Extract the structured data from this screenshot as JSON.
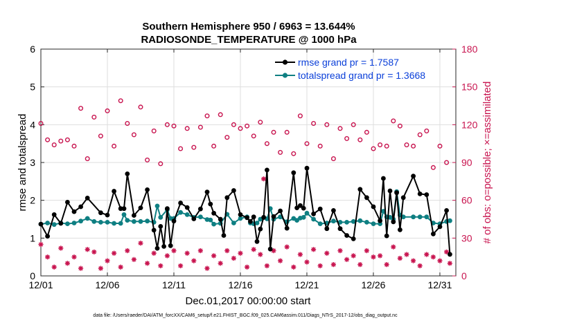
{
  "chart_data": {
    "type": "line",
    "title": [
      "Southern Hemisphere 950 / 6963 = 13.644%",
      "RADIOSONDE_TEMPERATURE @ 1000 hPa"
    ],
    "xlabel": "Dec.01,2017 00:00:00 start",
    "ylabel": "rmse and totalspread",
    "ylabel_right": "# of obs: o=possible; ×=assimilated",
    "xlim": [
      1,
      32.2
    ],
    "ylim": [
      0,
      6
    ],
    "ylim_right": [
      0,
      180
    ],
    "x_ticks": [
      1,
      6,
      11,
      16,
      21,
      26,
      31
    ],
    "x_ticklabels": [
      "12/01",
      "12/06",
      "12/11",
      "12/16",
      "12/21",
      "12/26",
      "12/31"
    ],
    "y_ticks": [
      0,
      1,
      2,
      3,
      4,
      5,
      6
    ],
    "y_ticks_right": [
      0,
      30,
      60,
      90,
      120,
      150,
      180
    ],
    "footnote": "data file: /Users/raeder/DAI/ATM_forcXX/CAM6_setup/f.e21.FHIST_BGC.f09_025.CAM6assim.011/Diags_NTrS_2017-12/obs_diag_output.nc",
    "colors": {
      "rmse": "#000000",
      "spread": "#0e7f82",
      "obs": "#c8144f",
      "legend_text": "#0a3fd9"
    },
    "series": [
      {
        "name": "rmse grand pr = 1.7587",
        "key": "rmse",
        "marker": "dot",
        "points": [
          [
            1.0,
            1.37
          ],
          [
            1.5,
            1.05
          ],
          [
            2.0,
            1.62
          ],
          [
            2.5,
            1.39
          ],
          [
            3.0,
            1.95
          ],
          [
            3.5,
            1.7
          ],
          [
            4.0,
            1.83
          ],
          [
            4.5,
            2.06
          ],
          [
            5.5,
            1.67
          ],
          [
            6.0,
            1.61
          ],
          [
            6.5,
            2.24
          ],
          [
            7.0,
            1.78
          ],
          [
            7.25,
            1.78
          ],
          [
            7.5,
            2.7
          ],
          [
            8.0,
            1.6
          ],
          [
            8.5,
            1.8
          ],
          [
            9.0,
            2.28
          ],
          [
            9.5,
            1.21
          ],
          [
            9.75,
            0.73
          ],
          [
            10.0,
            1.31
          ],
          [
            10.25,
            0.78
          ],
          [
            10.5,
            1.78
          ],
          [
            10.75,
            0.8
          ],
          [
            11.0,
            1.45
          ],
          [
            11.5,
            1.93
          ],
          [
            12.0,
            1.81
          ],
          [
            12.5,
            1.51
          ],
          [
            13.0,
            1.77
          ],
          [
            13.5,
            2.22
          ],
          [
            13.75,
            1.9
          ],
          [
            14.0,
            1.66
          ],
          [
            14.5,
            1.5
          ],
          [
            14.75,
            1.07
          ],
          [
            15.0,
            2.07
          ],
          [
            15.5,
            2.26
          ],
          [
            16.0,
            1.62
          ],
          [
            16.5,
            1.54
          ],
          [
            16.75,
            1.44
          ],
          [
            17.0,
            1.56
          ],
          [
            17.25,
            0.91
          ],
          [
            17.5,
            1.24
          ],
          [
            17.75,
            1.55
          ],
          [
            18.0,
            2.8
          ],
          [
            18.25,
            0.71
          ],
          [
            18.5,
            1.57
          ],
          [
            19.0,
            1.72
          ],
          [
            19.5,
            1.26
          ],
          [
            20.0,
            2.73
          ],
          [
            20.25,
            1.8
          ],
          [
            20.5,
            1.86
          ],
          [
            20.75,
            1.79
          ],
          [
            21.0,
            2.85
          ],
          [
            21.5,
            1.64
          ],
          [
            22.0,
            1.77
          ],
          [
            22.5,
            1.25
          ],
          [
            23.0,
            1.73
          ],
          [
            23.5,
            1.25
          ],
          [
            24.0,
            1.07
          ],
          [
            24.5,
            0.98
          ],
          [
            25.0,
            2.29
          ],
          [
            25.5,
            2.07
          ],
          [
            26.0,
            1.83
          ],
          [
            26.5,
            1.46
          ],
          [
            26.75,
            2.58
          ],
          [
            27.0,
            1.06
          ],
          [
            27.25,
            2.25
          ],
          [
            27.5,
            1.43
          ],
          [
            27.75,
            2.2
          ],
          [
            28.0,
            1.22
          ],
          [
            28.25,
            2.07
          ],
          [
            29.0,
            2.64
          ],
          [
            29.5,
            2.17
          ],
          [
            30.0,
            2.15
          ],
          [
            30.5,
            1.11
          ],
          [
            31.0,
            1.3
          ],
          [
            31.5,
            1.73
          ],
          [
            31.75,
            0.57
          ]
        ]
      },
      {
        "name": "totalspread grand pr = 1.3668",
        "key": "spread",
        "marker": "dot",
        "points": [
          [
            1.0,
            1.37
          ],
          [
            1.5,
            1.4
          ],
          [
            2.0,
            1.36
          ],
          [
            2.5,
            1.4
          ],
          [
            3.0,
            1.38
          ],
          [
            3.5,
            1.4
          ],
          [
            4.0,
            1.45
          ],
          [
            4.5,
            1.52
          ],
          [
            5.0,
            1.44
          ],
          [
            5.5,
            1.42
          ],
          [
            6.0,
            1.42
          ],
          [
            6.5,
            1.39
          ],
          [
            7.0,
            1.39
          ],
          [
            7.25,
            1.62
          ],
          [
            7.5,
            1.47
          ],
          [
            8.0,
            1.44
          ],
          [
            8.5,
            1.44
          ],
          [
            9.0,
            1.45
          ],
          [
            9.5,
            1.42
          ],
          [
            9.75,
            1.85
          ],
          [
            10.0,
            1.55
          ],
          [
            10.5,
            1.75
          ],
          [
            10.75,
            1.52
          ],
          [
            11.0,
            1.52
          ],
          [
            11.5,
            1.68
          ],
          [
            12.0,
            1.62
          ],
          [
            12.5,
            1.55
          ],
          [
            13.0,
            1.56
          ],
          [
            13.5,
            1.49
          ],
          [
            13.75,
            1.48
          ],
          [
            14.0,
            1.37
          ],
          [
            14.5,
            1.39
          ],
          [
            15.0,
            1.63
          ],
          [
            15.5,
            1.4
          ],
          [
            16.0,
            1.52
          ],
          [
            16.5,
            1.56
          ],
          [
            16.75,
            1.4
          ],
          [
            17.0,
            1.38
          ],
          [
            17.25,
            1.4
          ],
          [
            17.5,
            1.5
          ],
          [
            18.0,
            1.51
          ],
          [
            18.25,
            1.78
          ],
          [
            18.5,
            1.5
          ],
          [
            19.0,
            1.56
          ],
          [
            19.5,
            1.43
          ],
          [
            20.0,
            1.52
          ],
          [
            20.25,
            1.47
          ],
          [
            20.5,
            1.53
          ],
          [
            20.75,
            1.55
          ],
          [
            21.0,
            1.66
          ],
          [
            21.5,
            1.5
          ],
          [
            22.0,
            1.38
          ],
          [
            22.5,
            1.4
          ],
          [
            23.0,
            1.45
          ],
          [
            23.5,
            1.42
          ],
          [
            24.0,
            1.42
          ],
          [
            24.5,
            1.44
          ],
          [
            25.0,
            1.46
          ],
          [
            25.5,
            1.42
          ],
          [
            26.0,
            1.38
          ],
          [
            26.5,
            1.38
          ],
          [
            26.75,
            1.71
          ],
          [
            27.0,
            1.56
          ],
          [
            27.25,
            1.55
          ],
          [
            27.5,
            1.5
          ],
          [
            27.75,
            2.23
          ],
          [
            28.0,
            1.61
          ],
          [
            28.25,
            1.56
          ],
          [
            29.0,
            1.56
          ],
          [
            29.5,
            1.56
          ],
          [
            30.0,
            1.56
          ],
          [
            30.5,
            1.4
          ],
          [
            31.0,
            1.38
          ],
          [
            31.5,
            1.44
          ],
          [
            31.75,
            1.46
          ]
        ]
      },
      {
        "name": "obs possible",
        "key": "possible",
        "marker": "circle",
        "axis": "right",
        "points": [
          [
            1.0,
            121
          ],
          [
            1.5,
            108
          ],
          [
            2.0,
            104
          ],
          [
            2.5,
            107
          ],
          [
            3.0,
            108
          ],
          [
            3.5,
            103
          ],
          [
            4.0,
            133
          ],
          [
            4.5,
            93
          ],
          [
            5.0,
            126
          ],
          [
            5.5,
            111
          ],
          [
            6.0,
            131
          ],
          [
            6.5,
            103
          ],
          [
            7.0,
            139
          ],
          [
            7.5,
            121
          ],
          [
            8.0,
            112
          ],
          [
            8.5,
            134
          ],
          [
            9.0,
            92
          ],
          [
            9.5,
            115
          ],
          [
            10.0,
            89
          ],
          [
            10.5,
            120
          ],
          [
            11.0,
            119
          ],
          [
            11.5,
            101
          ],
          [
            12.0,
            117
          ],
          [
            12.5,
            102
          ],
          [
            13.0,
            118
          ],
          [
            13.5,
            127
          ],
          [
            14.0,
            103
          ],
          [
            14.5,
            128
          ],
          [
            15.0,
            110
          ],
          [
            15.5,
            120
          ],
          [
            16.0,
            117
          ],
          [
            16.5,
            119
          ],
          [
            17.0,
            111
          ],
          [
            17.5,
            122
          ],
          [
            18.0,
            105
          ],
          [
            18.5,
            114
          ],
          [
            19.0,
            98
          ],
          [
            19.5,
            114
          ],
          [
            20.0,
            97
          ],
          [
            20.5,
            127
          ],
          [
            21.0,
            105
          ],
          [
            21.5,
            121
          ],
          [
            22.0,
            103
          ],
          [
            22.5,
            120
          ],
          [
            23.0,
            93
          ],
          [
            23.5,
            117
          ],
          [
            24.0,
            109
          ],
          [
            24.5,
            120
          ],
          [
            25.0,
            108
          ],
          [
            25.5,
            114
          ],
          [
            26.0,
            101
          ],
          [
            26.5,
            104
          ],
          [
            27.0,
            103
          ],
          [
            27.5,
            123
          ],
          [
            28.0,
            119
          ],
          [
            28.5,
            104
          ],
          [
            29.0,
            103
          ],
          [
            29.5,
            112
          ],
          [
            30.0,
            115
          ],
          [
            30.5,
            86
          ],
          [
            31.0,
            103
          ],
          [
            31.5,
            90
          ]
        ]
      },
      {
        "name": "obs assimilated",
        "key": "assimilated",
        "marker": "asterisk",
        "axis": "right",
        "points": [
          [
            1.0,
            25
          ],
          [
            1.5,
            15
          ],
          [
            2.0,
            7
          ],
          [
            2.5,
            22
          ],
          [
            3.0,
            10
          ],
          [
            3.5,
            15
          ],
          [
            4.0,
            6
          ],
          [
            4.5,
            21
          ],
          [
            5.0,
            19
          ],
          [
            5.5,
            6
          ],
          [
            6.0,
            12
          ],
          [
            6.5,
            18
          ],
          [
            7.0,
            7
          ],
          [
            7.5,
            20
          ],
          [
            8.0,
            13
          ],
          [
            8.5,
            26
          ],
          [
            9.0,
            10
          ],
          [
            9.5,
            18
          ],
          [
            10.0,
            8
          ],
          [
            10.5,
            16
          ],
          [
            11.0,
            20
          ],
          [
            11.5,
            8
          ],
          [
            12.0,
            18
          ],
          [
            12.5,
            12
          ],
          [
            13.0,
            20
          ],
          [
            13.5,
            6
          ],
          [
            14.0,
            16
          ],
          [
            14.5,
            10
          ],
          [
            15.0,
            20
          ],
          [
            15.5,
            14
          ],
          [
            16.0,
            18
          ],
          [
            16.5,
            7
          ],
          [
            17.0,
            21
          ],
          [
            17.5,
            17
          ],
          [
            17.75,
            77
          ],
          [
            18.0,
            8
          ],
          [
            18.5,
            20
          ],
          [
            19.0,
            12
          ],
          [
            19.5,
            23
          ],
          [
            20.0,
            7
          ],
          [
            20.5,
            17
          ],
          [
            21.0,
            11
          ],
          [
            21.5,
            21
          ],
          [
            22.0,
            8
          ],
          [
            22.5,
            18
          ],
          [
            23.0,
            9
          ],
          [
            23.5,
            20
          ],
          [
            24.0,
            13
          ],
          [
            24.5,
            16
          ],
          [
            25.0,
            9
          ],
          [
            25.5,
            20
          ],
          [
            26.0,
            15
          ],
          [
            26.5,
            16
          ],
          [
            27.0,
            9
          ],
          [
            27.5,
            23
          ],
          [
            28.0,
            14
          ],
          [
            28.5,
            17
          ],
          [
            29.0,
            12
          ],
          [
            29.5,
            8
          ],
          [
            30.0,
            17
          ],
          [
            30.5,
            15
          ],
          [
            31.0,
            12
          ],
          [
            31.5,
            19
          ],
          [
            31.75,
            10
          ]
        ]
      }
    ]
  }
}
